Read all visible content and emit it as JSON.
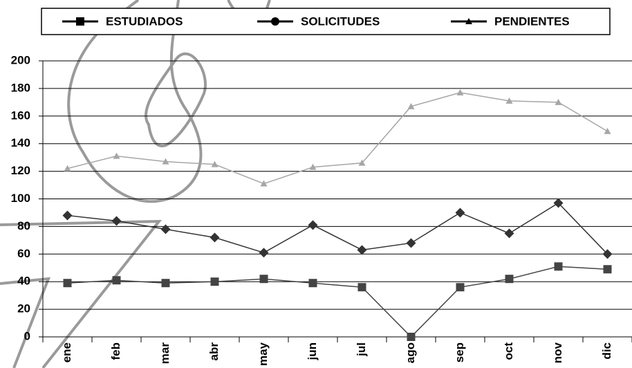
{
  "chart_data": {
    "type": "line",
    "categories": [
      "ene",
      "feb",
      "mar",
      "abr",
      "may",
      "jun",
      "jul",
      "ago",
      "sep",
      "oct",
      "nov",
      "dic"
    ],
    "series": [
      {
        "name": "ESTUDIADOS",
        "color": "#444444",
        "marker": "square",
        "legend_marker": "square",
        "values": [
          39,
          41,
          39,
          40,
          42,
          39,
          36,
          0,
          36,
          42,
          51,
          49
        ]
      },
      {
        "name": "SOLICITUDES",
        "color": "#333333",
        "marker": "diamond",
        "legend_marker": "circle",
        "values": [
          88,
          84,
          78,
          72,
          61,
          81,
          63,
          68,
          90,
          75,
          97,
          60
        ]
      },
      {
        "name": "PENDIENTES",
        "color": "#a6a6a6",
        "marker": "triangle",
        "legend_marker": "triangle",
        "values": [
          122,
          131,
          127,
          125,
          111,
          123,
          126,
          167,
          177,
          171,
          170,
          149
        ]
      }
    ],
    "legend_color": "#000000",
    "ylim": [
      0,
      200
    ],
    "yticks": [
      0,
      20,
      40,
      60,
      80,
      100,
      120,
      140,
      160,
      180,
      200
    ],
    "grid": true
  }
}
